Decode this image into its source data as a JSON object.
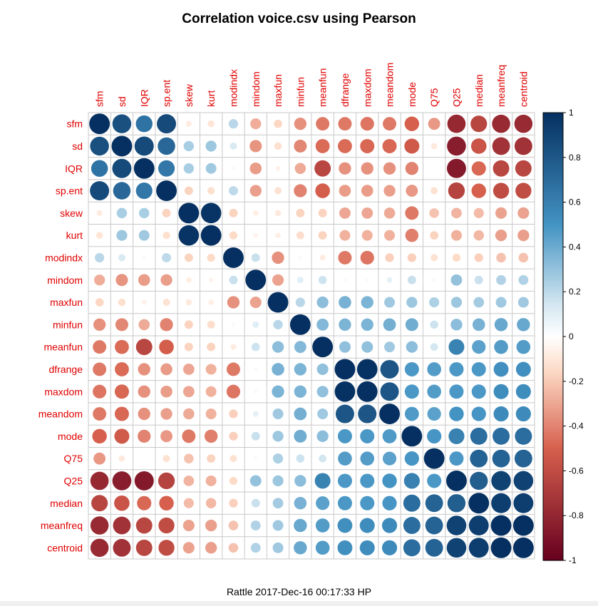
{
  "title": "Correlation voice.csv using Pearson",
  "footer": "Rattle 2017-Dec-16 00:17:33 HP",
  "chart_data": {
    "type": "heatmap",
    "method": "Pearson",
    "glyph": "circle",
    "variables": [
      "sfm",
      "sd",
      "IQR",
      "sp.ent",
      "skew",
      "kurt",
      "modindx",
      "mindom",
      "maxfun",
      "minfun",
      "meanfun",
      "dfrange",
      "maxdom",
      "meandom",
      "mode",
      "Q75",
      "Q25",
      "median",
      "meanfreq",
      "centroid"
    ],
    "matrix": [
      [
        1.0,
        0.84,
        0.66,
        0.87,
        -0.08,
        -0.11,
        0.21,
        -0.28,
        -0.16,
        -0.36,
        -0.43,
        -0.43,
        -0.44,
        -0.43,
        -0.5,
        -0.34,
        -0.79,
        -0.64,
        -0.78,
        -0.78
      ],
      [
        0.84,
        1.0,
        0.87,
        0.72,
        0.25,
        0.28,
        0.12,
        -0.35,
        -0.13,
        -0.39,
        -0.47,
        -0.47,
        -0.48,
        -0.48,
        -0.53,
        -0.09,
        -0.85,
        -0.56,
        -0.74,
        -0.74
      ],
      [
        0.66,
        0.87,
        1.0,
        0.64,
        0.25,
        0.27,
        0.03,
        -0.33,
        -0.06,
        -0.29,
        -0.63,
        -0.36,
        -0.36,
        -0.36,
        -0.4,
        -0.01,
        -0.87,
        -0.48,
        -0.63,
        -0.63
      ],
      [
        0.87,
        0.72,
        0.64,
        1.0,
        -0.17,
        -0.13,
        0.2,
        -0.32,
        -0.12,
        -0.4,
        -0.51,
        -0.33,
        -0.33,
        -0.32,
        -0.34,
        -0.12,
        -0.65,
        -0.5,
        -0.6,
        -0.6
      ],
      [
        -0.08,
        0.25,
        0.25,
        -0.17,
        1.0,
        0.98,
        -0.17,
        -0.07,
        -0.09,
        -0.17,
        -0.17,
        -0.3,
        -0.3,
        -0.29,
        -0.43,
        -0.22,
        -0.26,
        -0.24,
        -0.31,
        -0.31
      ],
      [
        -0.11,
        0.28,
        0.27,
        -0.13,
        0.98,
        1.0,
        -0.15,
        -0.05,
        -0.07,
        -0.14,
        -0.17,
        -0.27,
        -0.27,
        -0.27,
        -0.41,
        -0.17,
        -0.27,
        -0.25,
        -0.32,
        -0.32
      ],
      [
        0.21,
        0.12,
        0.03,
        0.2,
        -0.17,
        -0.15,
        1.0,
        0.17,
        -0.36,
        0.03,
        -0.08,
        -0.43,
        -0.44,
        -0.18,
        -0.18,
        -0.12,
        -0.15,
        -0.18,
        -0.22,
        -0.22
      ],
      [
        -0.28,
        -0.35,
        -0.33,
        -0.32,
        -0.07,
        -0.05,
        0.17,
        1.0,
        -0.31,
        0.1,
        0.16,
        0.03,
        0.03,
        0.08,
        0.17,
        0.03,
        0.3,
        0.17,
        0.23,
        0.23
      ],
      [
        -0.16,
        -0.13,
        -0.06,
        -0.12,
        -0.09,
        -0.07,
        -0.36,
        -0.31,
        1.0,
        0.21,
        0.32,
        0.37,
        0.36,
        0.27,
        0.28,
        0.24,
        0.28,
        0.26,
        0.27,
        0.27
      ],
      [
        -0.36,
        -0.39,
        -0.29,
        -0.4,
        -0.17,
        -0.14,
        0.03,
        0.1,
        0.21,
        1.0,
        0.34,
        0.36,
        0.36,
        0.38,
        0.39,
        0.16,
        0.32,
        0.37,
        0.41,
        0.41
      ],
      [
        -0.43,
        -0.47,
        -0.63,
        -0.51,
        -0.17,
        -0.17,
        -0.08,
        0.16,
        0.32,
        0.34,
        1.0,
        0.31,
        0.31,
        0.27,
        0.32,
        0.14,
        0.58,
        0.44,
        0.46,
        0.46
      ],
      [
        -0.43,
        -0.47,
        -0.36,
        -0.33,
        -0.3,
        -0.27,
        -0.43,
        0.03,
        0.37,
        0.36,
        0.31,
        1.0,
        0.99,
        0.81,
        0.48,
        0.46,
        0.48,
        0.48,
        0.52,
        0.52
      ],
      [
        -0.44,
        -0.48,
        -0.36,
        -0.33,
        -0.3,
        -0.27,
        -0.44,
        0.03,
        0.36,
        0.36,
        0.31,
        0.99,
        1.0,
        0.81,
        0.48,
        0.46,
        0.48,
        0.48,
        0.53,
        0.53
      ],
      [
        -0.43,
        -0.48,
        -0.36,
        -0.32,
        -0.29,
        -0.27,
        -0.18,
        0.08,
        0.27,
        0.38,
        0.27,
        0.81,
        0.81,
        1.0,
        0.47,
        0.44,
        0.5,
        0.49,
        0.54,
        0.54
      ],
      [
        -0.5,
        -0.53,
        -0.4,
        -0.34,
        -0.43,
        -0.41,
        -0.18,
        0.17,
        0.28,
        0.39,
        0.32,
        0.48,
        0.48,
        0.47,
        1.0,
        0.49,
        0.59,
        0.69,
        0.69,
        0.69
      ],
      [
        -0.34,
        -0.09,
        -0.01,
        -0.12,
        -0.22,
        -0.17,
        -0.12,
        0.03,
        0.24,
        0.16,
        0.14,
        0.46,
        0.46,
        0.44,
        0.49,
        1.0,
        0.48,
        0.74,
        0.74,
        0.74
      ],
      [
        -0.79,
        -0.85,
        -0.87,
        -0.65,
        -0.26,
        -0.27,
        -0.15,
        0.3,
        0.28,
        0.32,
        0.58,
        0.48,
        0.48,
        0.5,
        0.59,
        0.48,
        1.0,
        0.77,
        0.91,
        0.91
      ],
      [
        -0.64,
        -0.56,
        -0.48,
        -0.5,
        -0.24,
        -0.25,
        -0.18,
        0.17,
        0.26,
        0.37,
        0.44,
        0.48,
        0.48,
        0.49,
        0.69,
        0.74,
        0.77,
        1.0,
        0.93,
        0.93
      ],
      [
        -0.78,
        -0.74,
        -0.63,
        -0.6,
        -0.31,
        -0.32,
        -0.22,
        0.23,
        0.27,
        0.41,
        0.46,
        0.52,
        0.53,
        0.54,
        0.69,
        0.74,
        0.91,
        0.93,
        1.0,
        1.0
      ],
      [
        -0.78,
        -0.74,
        -0.63,
        -0.6,
        -0.31,
        -0.32,
        -0.22,
        0.23,
        0.27,
        0.41,
        0.46,
        0.52,
        0.53,
        0.54,
        0.69,
        0.74,
        0.91,
        0.93,
        1.0,
        1.0
      ]
    ],
    "colorbar": {
      "range": [
        -1,
        1
      ],
      "tick_labels": [
        "1",
        "0.8",
        "0.6",
        "0.4",
        "0.2",
        "0",
        "-0.2",
        "-0.4",
        "-0.6",
        "-0.8",
        "-1"
      ],
      "tick_values": [
        1,
        0.8,
        0.6,
        0.4,
        0.2,
        0,
        -0.2,
        -0.4,
        -0.6,
        -0.8,
        -1
      ],
      "placement": "right"
    },
    "colors": {
      "label": "#e00000",
      "negative_max": "#67001f",
      "negative_mid": "#d6604d",
      "negative_light": "#fddbc7",
      "zero": "#ffffff",
      "positive_light": "#d1e5f0",
      "positive_mid": "#4393c3",
      "positive_max": "#053061",
      "grid": "#c8c8c8"
    },
    "grid": true
  }
}
